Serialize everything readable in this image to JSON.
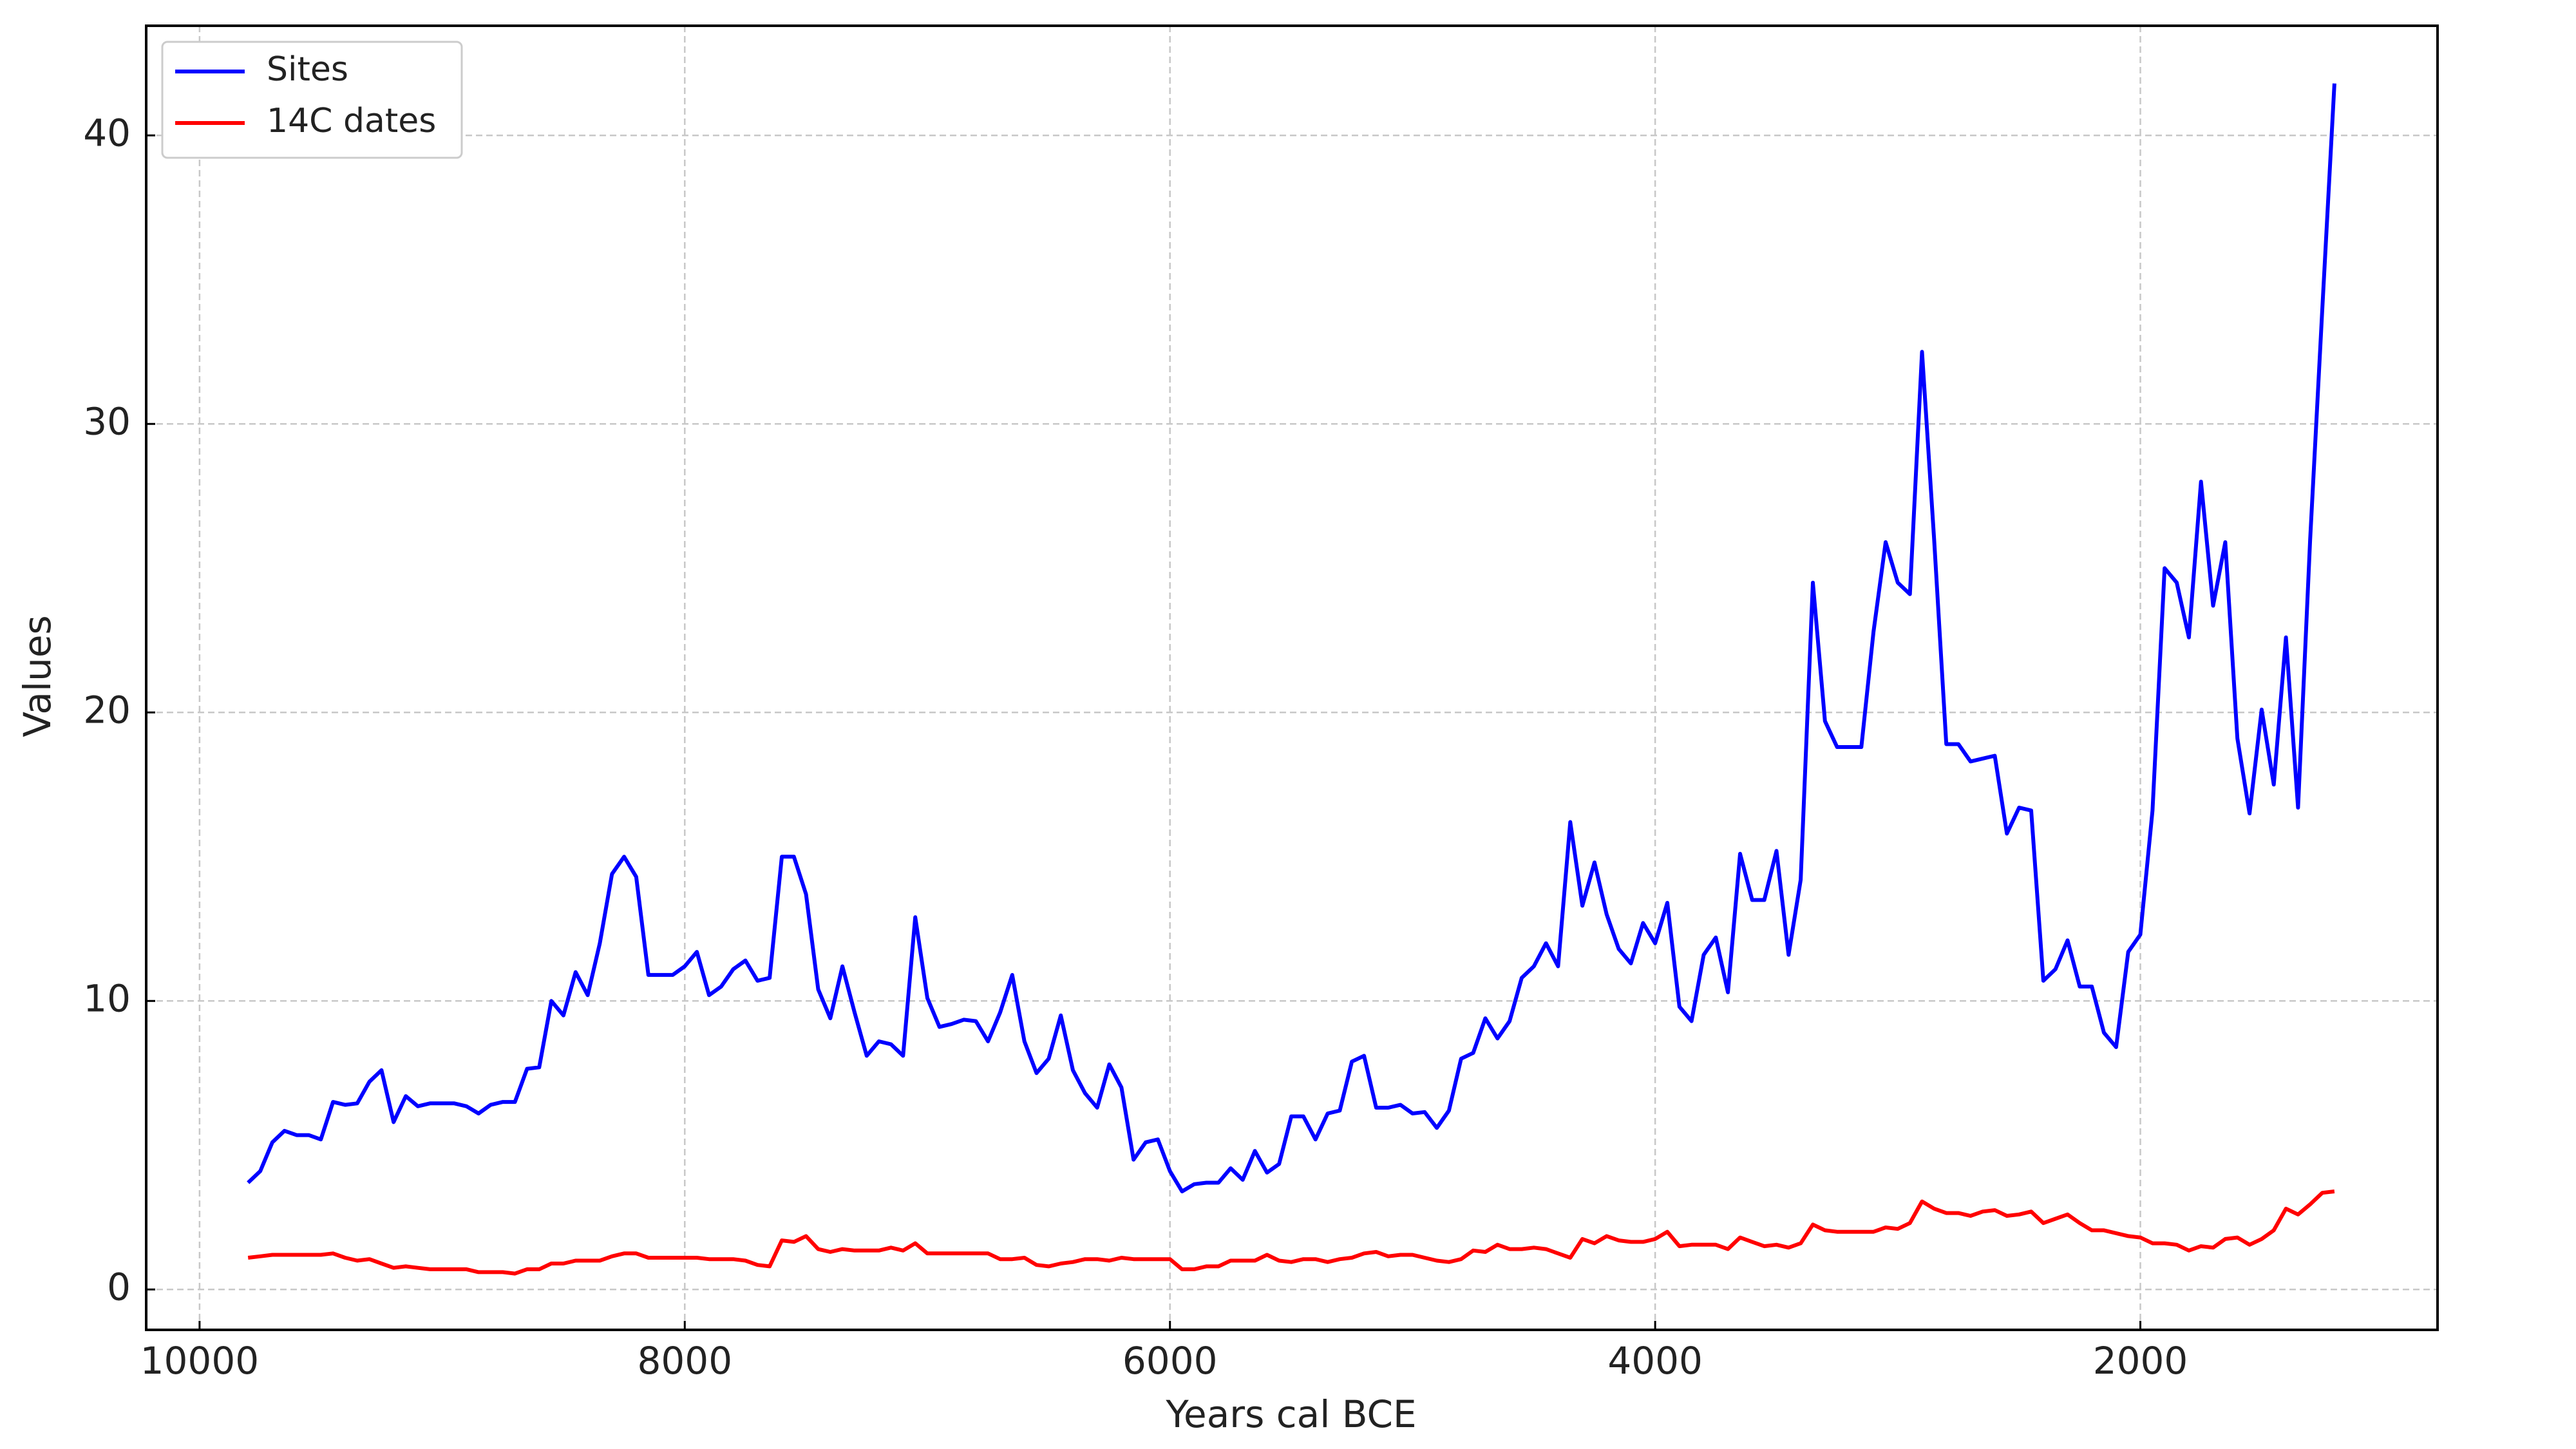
{
  "chart_data": {
    "type": "line",
    "x_label": "Years cal BCE",
    "y_label": "Values",
    "x": [
      9800,
      9750,
      9700,
      9650,
      9600,
      9550,
      9500,
      9450,
      9400,
      9350,
      9300,
      9250,
      9200,
      9150,
      9100,
      9050,
      9000,
      8950,
      8900,
      8850,
      8800,
      8750,
      8700,
      8650,
      8600,
      8550,
      8500,
      8450,
      8400,
      8350,
      8300,
      8250,
      8200,
      8150,
      8100,
      8050,
      8000,
      7950,
      7900,
      7850,
      7800,
      7750,
      7700,
      7650,
      7600,
      7550,
      7500,
      7450,
      7400,
      7350,
      7300,
      7250,
      7200,
      7150,
      7100,
      7050,
      7000,
      6950,
      6900,
      6850,
      6800,
      6750,
      6700,
      6650,
      6600,
      6550,
      6500,
      6450,
      6400,
      6350,
      6300,
      6250,
      6200,
      6150,
      6100,
      6050,
      6000,
      5950,
      5900,
      5850,
      5800,
      5750,
      5700,
      5650,
      5600,
      5550,
      5500,
      5450,
      5400,
      5350,
      5300,
      5250,
      5200,
      5150,
      5100,
      5050,
      5000,
      4950,
      4900,
      4850,
      4800,
      4750,
      4700,
      4650,
      4600,
      4550,
      4500,
      4450,
      4400,
      4350,
      4300,
      4250,
      4200,
      4150,
      4100,
      4050,
      4000,
      3950,
      3900,
      3850,
      3800,
      3750,
      3700,
      3650,
      3600,
      3550,
      3500,
      3450,
      3400,
      3350,
      3300,
      3250,
      3200,
      3150,
      3100,
      3050,
      3000,
      2950,
      2900,
      2850,
      2800,
      2750,
      2700,
      2650,
      2600,
      2550,
      2500,
      2450,
      2400,
      2350,
      2300,
      2250,
      2200,
      2150,
      2100,
      2050,
      2000,
      1950,
      1900,
      1850,
      1800,
      1750,
      1700,
      1650,
      1600,
      1550,
      1500,
      1450,
      1400,
      1350,
      1300,
      1250,
      1200
    ],
    "series": [
      {
        "name": "Sites",
        "color": "#0000ff",
        "values": [
          3.7,
          4.1,
          5.1,
          5.5,
          5.35,
          5.35,
          5.2,
          6.5,
          6.4,
          6.45,
          7.2,
          7.6,
          5.8,
          6.7,
          6.35,
          6.45,
          6.45,
          6.45,
          6.35,
          6.1,
          6.4,
          6.5,
          6.5,
          7.65,
          7.7,
          10.0,
          9.5,
          11.0,
          10.2,
          12.0,
          14.4,
          15.0,
          14.3,
          10.9,
          10.9,
          10.9,
          11.2,
          11.7,
          10.2,
          10.5,
          11.1,
          11.4,
          10.7,
          10.8,
          15.0,
          15.0,
          13.7,
          10.4,
          9.4,
          11.2,
          9.6,
          8.1,
          8.6,
          8.5,
          8.1,
          12.9,
          10.1,
          9.1,
          9.2,
          9.35,
          9.3,
          8.6,
          9.6,
          10.9,
          8.6,
          7.5,
          8.0,
          9.5,
          7.6,
          6.8,
          6.3,
          7.8,
          7.0,
          4.5,
          5.1,
          5.2,
          4.1,
          3.4,
          3.65,
          3.7,
          3.7,
          4.2,
          3.8,
          4.8,
          4.05,
          4.35,
          6.0,
          6.0,
          5.2,
          6.1,
          6.2,
          7.9,
          8.1,
          6.3,
          6.3,
          6.4,
          6.1,
          6.15,
          5.6,
          6.2,
          8.0,
          8.2,
          9.4,
          8.7,
          9.3,
          10.8,
          11.2,
          12.0,
          11.2,
          16.2,
          13.3,
          14.8,
          13.0,
          11.8,
          11.3,
          12.7,
          12.0,
          13.4,
          9.8,
          9.3,
          11.6,
          12.2,
          10.3,
          15.1,
          13.5,
          13.5,
          15.2,
          11.6,
          14.2,
          24.5,
          19.7,
          18.8,
          18.8,
          18.8,
          22.8,
          25.9,
          24.5,
          24.1,
          32.5,
          26.0,
          18.9,
          18.9,
          18.3,
          18.4,
          18.5,
          15.8,
          16.7,
          16.6,
          10.7,
          11.1,
          12.1,
          10.5,
          10.5,
          8.9,
          8.4,
          11.7,
          12.3,
          16.6,
          25.0,
          24.5,
          22.6,
          28.0,
          23.7,
          25.9,
          19.1,
          16.5,
          20.1,
          17.5,
          22.6,
          16.7,
          26.0,
          34.0,
          41.8
        ]
      },
      {
        "name": "14C dates",
        "color": "#ff0000",
        "values": [
          1.1,
          1.15,
          1.2,
          1.2,
          1.2,
          1.2,
          1.2,
          1.25,
          1.1,
          1.0,
          1.05,
          0.9,
          0.75,
          0.8,
          0.75,
          0.7,
          0.7,
          0.7,
          0.7,
          0.6,
          0.6,
          0.6,
          0.55,
          0.7,
          0.7,
          0.9,
          0.9,
          1.0,
          1.0,
          1.0,
          1.15,
          1.25,
          1.25,
          1.1,
          1.1,
          1.1,
          1.1,
          1.1,
          1.05,
          1.05,
          1.05,
          1.0,
          0.85,
          0.8,
          1.7,
          1.65,
          1.85,
          1.4,
          1.3,
          1.4,
          1.35,
          1.35,
          1.35,
          1.45,
          1.35,
          1.6,
          1.25,
          1.25,
          1.25,
          1.25,
          1.25,
          1.25,
          1.05,
          1.05,
          1.1,
          0.85,
          0.8,
          0.9,
          0.95,
          1.05,
          1.05,
          1.0,
          1.1,
          1.05,
          1.05,
          1.05,
          1.05,
          0.7,
          0.7,
          0.8,
          0.8,
          1.0,
          1.0,
          1.0,
          1.2,
          1.0,
          0.95,
          1.05,
          1.05,
          0.95,
          1.05,
          1.1,
          1.25,
          1.3,
          1.15,
          1.2,
          1.2,
          1.1,
          1.0,
          0.95,
          1.05,
          1.35,
          1.3,
          1.55,
          1.4,
          1.4,
          1.45,
          1.4,
          1.25,
          1.1,
          1.75,
          1.6,
          1.85,
          1.7,
          1.65,
          1.65,
          1.75,
          2.0,
          1.5,
          1.55,
          1.55,
          1.55,
          1.4,
          1.8,
          1.65,
          1.5,
          1.55,
          1.45,
          1.6,
          2.25,
          2.05,
          2.0,
          2.0,
          2.0,
          2.0,
          2.15,
          2.1,
          2.3,
          3.05,
          2.8,
          2.65,
          2.65,
          2.55,
          2.7,
          2.75,
          2.55,
          2.6,
          2.7,
          2.3,
          2.45,
          2.6,
          2.3,
          2.05,
          2.05,
          1.95,
          1.85,
          1.8,
          1.6,
          1.6,
          1.55,
          1.35,
          1.5,
          1.45,
          1.75,
          1.8,
          1.55,
          1.75,
          2.05,
          2.8,
          2.6,
          2.95,
          3.35,
          3.4
        ]
      }
    ],
    "xlim": [
      10220,
      775
    ],
    "ylim": [
      -1.4,
      43.8
    ],
    "xticks": [
      10000,
      8000,
      6000,
      4000,
      2000
    ],
    "yticks": [
      0,
      10,
      20,
      30,
      40
    ],
    "grid": true,
    "legend": "upper left"
  }
}
